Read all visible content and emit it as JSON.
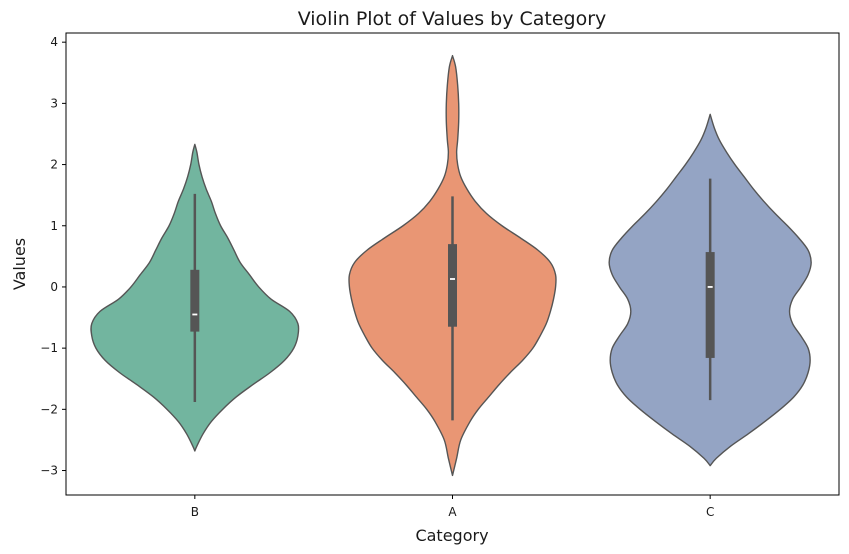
{
  "chart_data": {
    "type": "violin",
    "title": "Violin Plot of Values by Category",
    "xlabel": "Category",
    "ylabel": "Values",
    "ylim": [
      -3.4,
      4.15
    ],
    "yticks": [
      -3,
      -2,
      -1,
      0,
      1,
      2,
      3,
      4
    ],
    "grid": false,
    "categories": [
      "B",
      "A",
      "C"
    ],
    "series": [
      {
        "category": "B",
        "color": "#72b59f",
        "range": [
          -2.68,
          2.33
        ],
        "density": [
          [
            -2.68,
            0.0
          ],
          [
            -2.6,
            0.02
          ],
          [
            -2.4,
            0.08
          ],
          [
            -2.2,
            0.16
          ],
          [
            -2.0,
            0.27
          ],
          [
            -1.8,
            0.4
          ],
          [
            -1.6,
            0.56
          ],
          [
            -1.4,
            0.73
          ],
          [
            -1.2,
            0.87
          ],
          [
            -1.0,
            0.96
          ],
          [
            -0.8,
            1.0
          ],
          [
            -0.6,
            1.0
          ],
          [
            -0.4,
            0.92
          ],
          [
            -0.2,
            0.74
          ],
          [
            0.0,
            0.62
          ],
          [
            0.2,
            0.53
          ],
          [
            0.4,
            0.44
          ],
          [
            0.6,
            0.38
          ],
          [
            0.8,
            0.32
          ],
          [
            1.0,
            0.25
          ],
          [
            1.2,
            0.2
          ],
          [
            1.4,
            0.16
          ],
          [
            1.6,
            0.11
          ],
          [
            1.8,
            0.07
          ],
          [
            2.0,
            0.04
          ],
          [
            2.2,
            0.02
          ],
          [
            2.33,
            0.0
          ]
        ],
        "whisker": [
          -1.88,
          1.52
        ],
        "box": [
          -0.73,
          0.28
        ],
        "median": -0.45
      },
      {
        "category": "A",
        "color": "#e99674",
        "range": [
          -3.08,
          3.78
        ],
        "density": [
          [
            -3.08,
            0.0
          ],
          [
            -2.8,
            0.04
          ],
          [
            -2.5,
            0.08
          ],
          [
            -2.2,
            0.17
          ],
          [
            -2.0,
            0.25
          ],
          [
            -1.8,
            0.35
          ],
          [
            -1.6,
            0.45
          ],
          [
            -1.4,
            0.56
          ],
          [
            -1.2,
            0.68
          ],
          [
            -1.0,
            0.78
          ],
          [
            -0.8,
            0.85
          ],
          [
            -0.6,
            0.91
          ],
          [
            -0.4,
            0.95
          ],
          [
            -0.2,
            0.98
          ],
          [
            0.0,
            1.0
          ],
          [
            0.2,
            1.0
          ],
          [
            0.4,
            0.95
          ],
          [
            0.6,
            0.83
          ],
          [
            0.8,
            0.66
          ],
          [
            1.0,
            0.48
          ],
          [
            1.2,
            0.33
          ],
          [
            1.4,
            0.22
          ],
          [
            1.6,
            0.14
          ],
          [
            1.8,
            0.08
          ],
          [
            2.0,
            0.05
          ],
          [
            2.2,
            0.04
          ],
          [
            2.4,
            0.05
          ],
          [
            2.7,
            0.06
          ],
          [
            3.0,
            0.06
          ],
          [
            3.3,
            0.05
          ],
          [
            3.6,
            0.03
          ],
          [
            3.78,
            0.0
          ]
        ],
        "whisker": [
          -2.18,
          1.48
        ],
        "box": [
          -0.65,
          0.7
        ],
        "median": 0.13
      },
      {
        "category": "C",
        "color": "#94a4c4",
        "range": [
          -2.92,
          2.82
        ],
        "density": [
          [
            -2.92,
            0.0
          ],
          [
            -2.8,
            0.06
          ],
          [
            -2.6,
            0.2
          ],
          [
            -2.4,
            0.37
          ],
          [
            -2.2,
            0.53
          ],
          [
            -2.0,
            0.68
          ],
          [
            -1.8,
            0.81
          ],
          [
            -1.6,
            0.9
          ],
          [
            -1.4,
            0.95
          ],
          [
            -1.2,
            0.97
          ],
          [
            -1.0,
            0.95
          ],
          [
            -0.8,
            0.88
          ],
          [
            -0.6,
            0.8
          ],
          [
            -0.4,
            0.77
          ],
          [
            -0.2,
            0.8
          ],
          [
            0.0,
            0.88
          ],
          [
            0.2,
            0.95
          ],
          [
            0.4,
            0.98
          ],
          [
            0.6,
            0.95
          ],
          [
            0.8,
            0.86
          ],
          [
            1.0,
            0.75
          ],
          [
            1.2,
            0.63
          ],
          [
            1.4,
            0.52
          ],
          [
            1.6,
            0.42
          ],
          [
            1.8,
            0.33
          ],
          [
            2.0,
            0.24
          ],
          [
            2.2,
            0.16
          ],
          [
            2.4,
            0.09
          ],
          [
            2.6,
            0.04
          ],
          [
            2.82,
            0.0
          ]
        ],
        "whisker": [
          -1.85,
          1.77
        ],
        "box": [
          -1.16,
          0.57
        ],
        "median": 0.0
      }
    ]
  }
}
